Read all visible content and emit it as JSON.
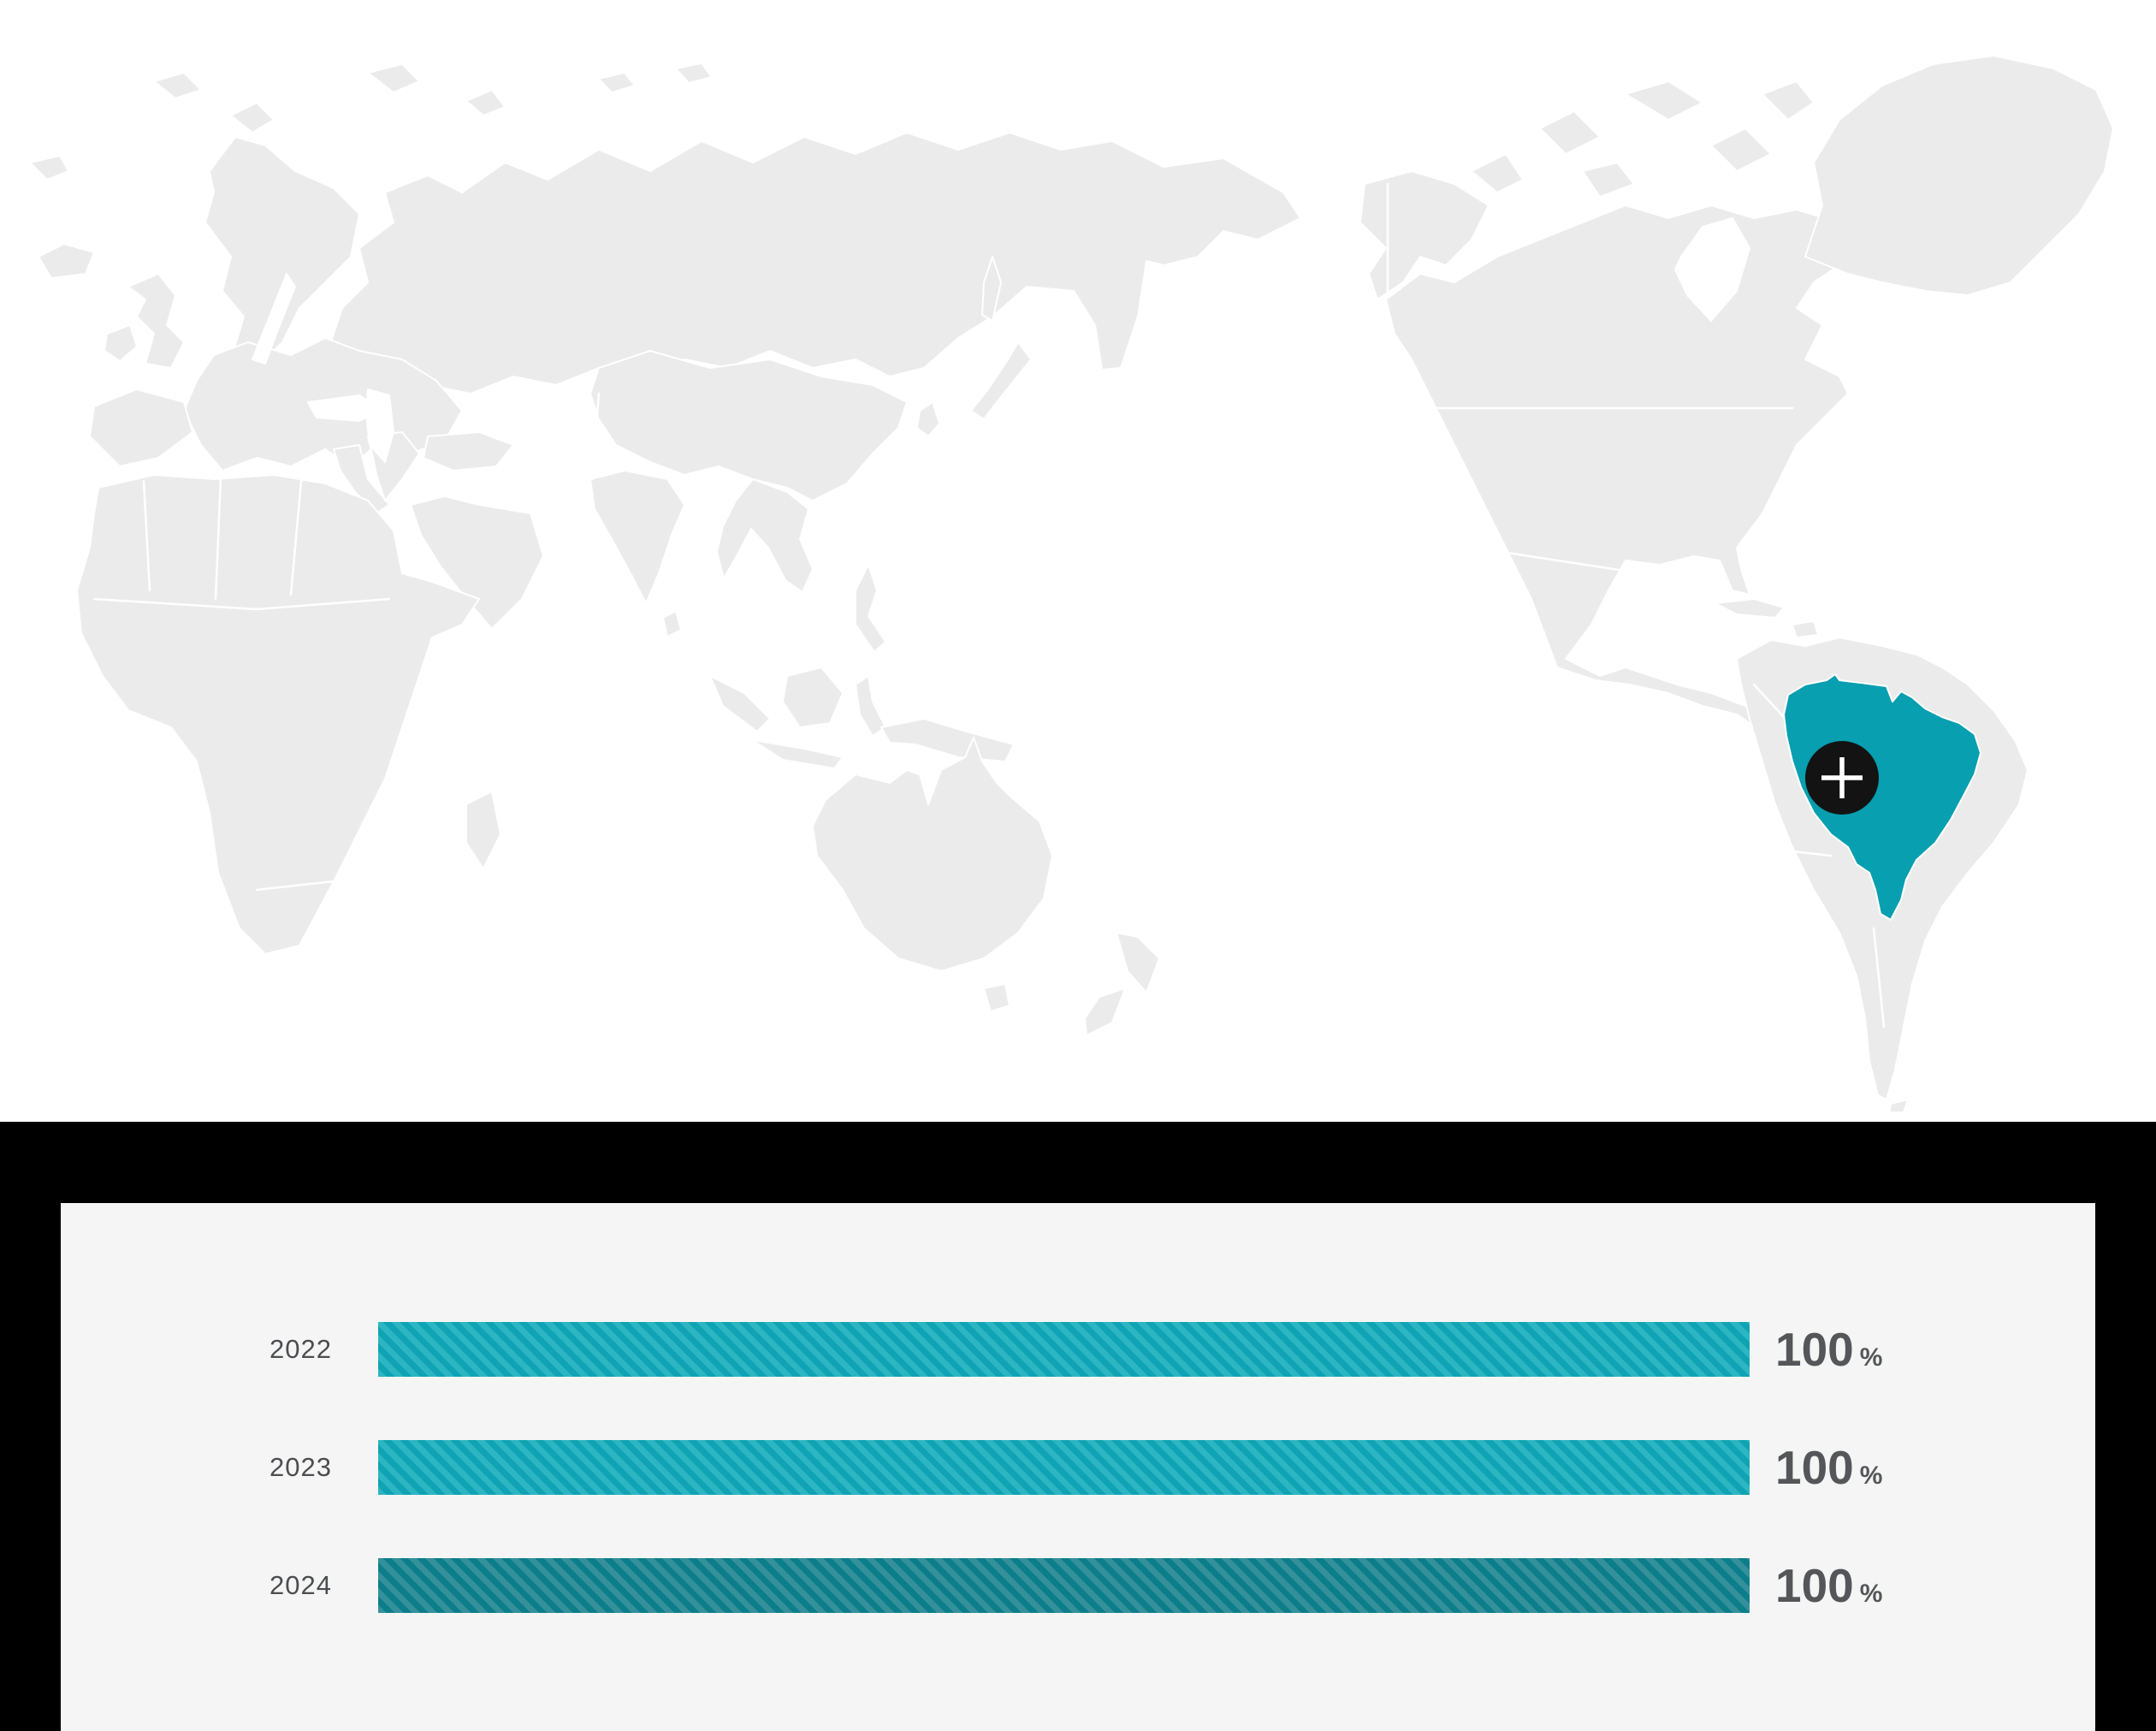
{
  "map_section": {
    "highlighted_country": "Brazil",
    "expand_button": {
      "glyph": "+"
    },
    "colors": {
      "land": "#ebebeb",
      "border": "#ffffff",
      "ocean": "#ffffff",
      "highlight": "#089fb0",
      "button_bg": "#131313",
      "button_glyph": "#ffffff"
    }
  },
  "chart_section": {
    "frame_color": "#000000",
    "panel_color": "#f5f5f5",
    "label_color": "#4b4d50",
    "value_color": "#54565a",
    "bar_styles": {
      "light": {
        "stripe_a": "#2cb5c2",
        "stripe_b": "#0fa3b3"
      },
      "dark": {
        "stripe_a": "#34909b",
        "stripe_b": "#0b7e8a"
      }
    },
    "rows": [
      {
        "label": "2022",
        "display_value": "100",
        "suffix": "%",
        "style": "light"
      },
      {
        "label": "2023",
        "display_value": "100",
        "suffix": "%",
        "style": "light"
      },
      {
        "label": "2024",
        "display_value": "100",
        "suffix": "%",
        "style": "dark"
      }
    ]
  },
  "chart_data": {
    "type": "bar",
    "orientation": "horizontal",
    "categories": [
      "2022",
      "2023",
      "2024"
    ],
    "values": [
      100,
      100,
      100
    ],
    "unit": "%",
    "xlim": [
      0,
      100
    ],
    "grid": false,
    "legend": false,
    "value_labels": [
      "100 %",
      "100 %",
      "100 %"
    ]
  }
}
